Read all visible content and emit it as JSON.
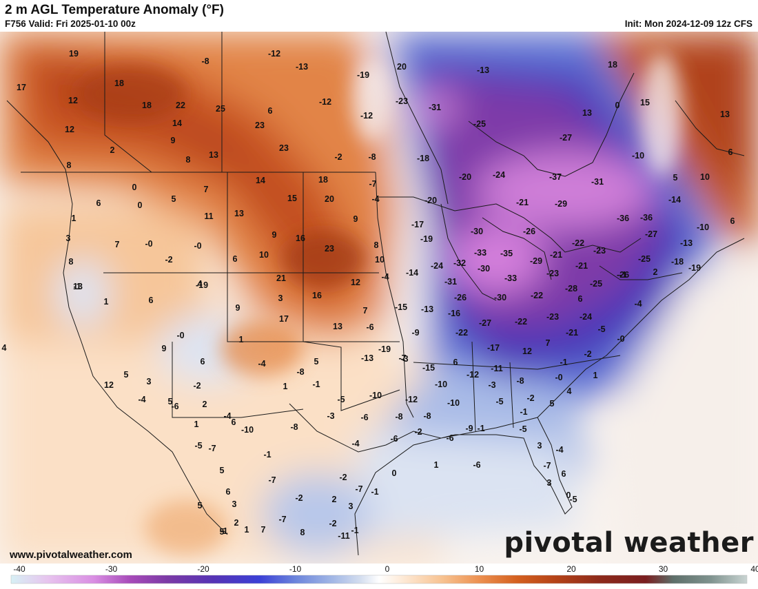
{
  "header": {
    "title": "2 m AGL Temperature Anomaly (°F)",
    "valid": "F756 Valid: Fri 2025-01-10 00z",
    "init": "Init: Mon 2024-12-09 12z CFS"
  },
  "footer": {
    "website": "www.pivotalweather.com",
    "brand": "pivotal weather"
  },
  "colorbar": {
    "ticks": [
      "-40",
      "-30",
      "-20",
      "-10",
      "0",
      "10",
      "20",
      "30",
      "40"
    ],
    "min": -40,
    "max": 40,
    "stops": [
      {
        "v": -40,
        "c": "#d7f0f5"
      },
      {
        "v": -36,
        "c": "#e7c4ee"
      },
      {
        "v": -31,
        "c": "#d98ee3"
      },
      {
        "v": -27,
        "c": "#a64ab9"
      },
      {
        "v": -23,
        "c": "#7b3aa6"
      },
      {
        "v": -18,
        "c": "#5633b5"
      },
      {
        "v": -13,
        "c": "#3b40d6"
      },
      {
        "v": -9,
        "c": "#6d86dc"
      },
      {
        "v": -5,
        "c": "#a3b8e6"
      },
      {
        "v": -2,
        "c": "#d4deef"
      },
      {
        "v": 0,
        "c": "#ffffff"
      },
      {
        "v": 3,
        "c": "#fde6d0"
      },
      {
        "v": 7,
        "c": "#f7c18f"
      },
      {
        "v": 11,
        "c": "#ec8f4f"
      },
      {
        "v": 15,
        "c": "#d4601f"
      },
      {
        "v": 19,
        "c": "#b64418"
      },
      {
        "v": 24,
        "c": "#8d2a1b"
      },
      {
        "v": 29,
        "c": "#7a1e20"
      },
      {
        "v": 32,
        "c": "#5e6f6a"
      },
      {
        "v": 36,
        "c": "#7e928e"
      },
      {
        "v": 40,
        "c": "#c9d4d2"
      }
    ]
  },
  "labels": [
    {
      "t": "19"
    },
    {
      "t": "-8"
    },
    {
      "t": "-12"
    },
    {
      "t": "-13"
    },
    {
      "t": "-19"
    },
    {
      "t": "20"
    },
    {
      "t": "-13"
    },
    {
      "t": "18"
    },
    {
      "t": "17"
    },
    {
      "t": "18"
    },
    {
      "t": "12"
    },
    {
      "t": "18"
    },
    {
      "t": "22"
    },
    {
      "t": "25"
    },
    {
      "t": "6"
    },
    {
      "t": "-12"
    },
    {
      "t": "-23"
    },
    {
      "t": "-31"
    },
    {
      "t": "0"
    },
    {
      "t": "15"
    },
    {
      "t": "13"
    },
    {
      "t": "14"
    },
    {
      "t": "23"
    },
    {
      "t": "-12"
    },
    {
      "t": "-25"
    },
    {
      "t": "13"
    },
    {
      "t": "12"
    },
    {
      "t": "9"
    },
    {
      "t": "23"
    },
    {
      "t": "-27"
    },
    {
      "t": "2"
    },
    {
      "t": "8"
    },
    {
      "t": "13"
    },
    {
      "t": "-2"
    },
    {
      "t": "-8"
    },
    {
      "t": "-18"
    },
    {
      "t": "-10"
    },
    {
      "t": "6"
    },
    {
      "t": "8"
    },
    {
      "t": "0"
    },
    {
      "t": "7"
    },
    {
      "t": "14"
    },
    {
      "t": "18"
    },
    {
      "t": "-7"
    },
    {
      "t": "-20"
    },
    {
      "t": "-24"
    },
    {
      "t": "-37"
    },
    {
      "t": "-31"
    },
    {
      "t": "5"
    },
    {
      "t": "10"
    },
    {
      "t": "6"
    },
    {
      "t": "5"
    },
    {
      "t": "0"
    },
    {
      "t": "11"
    },
    {
      "t": "13"
    },
    {
      "t": "15"
    },
    {
      "t": "20"
    },
    {
      "t": "-4"
    },
    {
      "t": "-20"
    },
    {
      "t": "-21"
    },
    {
      "t": "-29"
    },
    {
      "t": "-14"
    },
    {
      "t": "1"
    },
    {
      "t": "9"
    },
    {
      "t": "-17"
    },
    {
      "t": "-36"
    },
    {
      "t": "-36"
    },
    {
      "t": "-10"
    },
    {
      "t": "6"
    },
    {
      "t": "3"
    },
    {
      "t": "7"
    },
    {
      "t": "-0"
    },
    {
      "t": "-0"
    },
    {
      "t": "9"
    },
    {
      "t": "16"
    },
    {
      "t": "8"
    },
    {
      "t": "-19"
    },
    {
      "t": "-30"
    },
    {
      "t": "-26"
    },
    {
      "t": "-22"
    },
    {
      "t": "-27"
    },
    {
      "t": "-13"
    },
    {
      "t": "8"
    },
    {
      "t": "-2"
    },
    {
      "t": "6"
    },
    {
      "t": "10"
    },
    {
      "t": "23"
    },
    {
      "t": "10"
    },
    {
      "t": "-33"
    },
    {
      "t": "-35"
    },
    {
      "t": "-21"
    },
    {
      "t": "-23"
    },
    {
      "t": "-25"
    },
    {
      "t": "-18"
    },
    {
      "t": "-1"
    },
    {
      "t": "4"
    },
    {
      "t": "1"
    },
    {
      "t": "6"
    },
    {
      "t": "21"
    },
    {
      "t": "12"
    },
    {
      "t": "-4"
    },
    {
      "t": "-14"
    },
    {
      "t": "-24"
    },
    {
      "t": "-32"
    },
    {
      "t": "-30"
    },
    {
      "t": "-29"
    },
    {
      "t": "-23"
    },
    {
      "t": "-21"
    },
    {
      "t": "-1"
    },
    {
      "t": "2"
    },
    {
      "t": "13"
    },
    {
      "t": "-19"
    },
    {
      "t": "-31"
    },
    {
      "t": "-33"
    },
    {
      "t": "-28"
    },
    {
      "t": "-25"
    },
    {
      "t": "-26"
    },
    {
      "t": "-19"
    },
    {
      "t": "-4"
    },
    {
      "t": "9"
    },
    {
      "t": "17"
    },
    {
      "t": "7"
    },
    {
      "t": "-15"
    },
    {
      "t": "-26"
    },
    {
      "t": "-30"
    },
    {
      "t": "-22"
    },
    {
      "t": "6"
    },
    {
      "t": "3"
    },
    {
      "t": "16"
    },
    {
      "t": "13"
    },
    {
      "t": "-6"
    },
    {
      "t": "-13"
    },
    {
      "t": "-16"
    },
    {
      "t": "-27"
    },
    {
      "t": "-23"
    },
    {
      "t": "-24"
    },
    {
      "t": "-5"
    },
    {
      "t": "-0"
    },
    {
      "t": "1"
    },
    {
      "t": "-9"
    },
    {
      "t": "-22"
    },
    {
      "t": "-22"
    },
    {
      "t": "-21"
    },
    {
      "t": "7"
    },
    {
      "t": "-3"
    },
    {
      "t": "4"
    },
    {
      "t": "9"
    },
    {
      "t": "6"
    },
    {
      "t": "5"
    },
    {
      "t": "-13"
    },
    {
      "t": "-19"
    },
    {
      "t": "-17"
    },
    {
      "t": "12"
    },
    {
      "t": "-2"
    },
    {
      "t": "-0"
    },
    {
      "t": "-4"
    },
    {
      "t": "-7"
    },
    {
      "t": "-15"
    },
    {
      "t": "6"
    },
    {
      "t": "-1"
    },
    {
      "t": "5"
    },
    {
      "t": "3"
    },
    {
      "t": "-8"
    },
    {
      "t": "12"
    },
    {
      "t": "-12"
    },
    {
      "t": "-11"
    },
    {
      "t": "-8"
    },
    {
      "t": "-0"
    },
    {
      "t": "-2"
    },
    {
      "t": "2"
    },
    {
      "t": "6"
    },
    {
      "t": "1"
    },
    {
      "t": "-1"
    },
    {
      "t": "-5"
    },
    {
      "t": "-10"
    },
    {
      "t": "-12"
    },
    {
      "t": "-10"
    },
    {
      "t": "-3"
    },
    {
      "t": "-2"
    },
    {
      "t": "4"
    },
    {
      "t": "1"
    },
    {
      "t": "5"
    },
    {
      "t": "-4"
    },
    {
      "t": "-6"
    },
    {
      "t": "-6"
    },
    {
      "t": "-8"
    },
    {
      "t": "-8"
    },
    {
      "t": "-10"
    },
    {
      "t": "-9"
    },
    {
      "t": "-5"
    },
    {
      "t": "-1"
    },
    {
      "t": "5"
    },
    {
      "t": "1"
    },
    {
      "t": "-4"
    },
    {
      "t": "-10"
    },
    {
      "t": "-8"
    },
    {
      "t": "-3"
    },
    {
      "t": "-6"
    },
    {
      "t": "-2"
    },
    {
      "t": "-4"
    },
    {
      "t": "-6"
    },
    {
      "t": "-1"
    },
    {
      "t": "-5"
    },
    {
      "t": "-4"
    },
    {
      "t": "-5"
    },
    {
      "t": "-7"
    },
    {
      "t": "-1"
    },
    {
      "t": "-2"
    },
    {
      "t": "5"
    },
    {
      "t": "-7"
    },
    {
      "t": "-2"
    },
    {
      "t": "2"
    },
    {
      "t": "0"
    },
    {
      "t": "1"
    },
    {
      "t": "-6"
    },
    {
      "t": "-7"
    },
    {
      "t": "3"
    },
    {
      "t": "-7"
    },
    {
      "t": "-1"
    },
    {
      "t": "3"
    },
    {
      "t": "-1"
    },
    {
      "t": "-11"
    },
    {
      "t": "1"
    },
    {
      "t": "-7"
    },
    {
      "t": "8"
    },
    {
      "t": "-2"
    },
    {
      "t": "5"
    },
    {
      "t": "6"
    },
    {
      "t": "3"
    },
    {
      "t": "5"
    },
    {
      "t": "2"
    },
    {
      "t": "7"
    },
    {
      "t": "-1"
    },
    {
      "t": "6"
    },
    {
      "t": "3"
    },
    {
      "t": "0"
    },
    {
      "t": "-5"
    }
  ]
}
